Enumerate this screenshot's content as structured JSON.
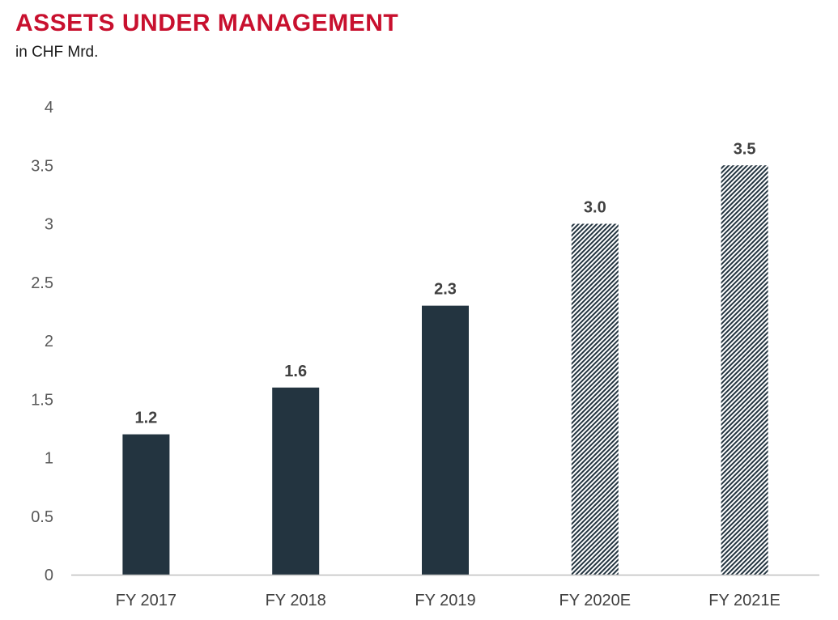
{
  "header": {
    "title": "ASSETS UNDER MANAGEMENT",
    "subtitle": "in CHF Mrd."
  },
  "colors": {
    "title": "#c8102e",
    "bar": "#233440",
    "axis": "#bfbfbf",
    "label": "#404040",
    "tick": "#595959"
  },
  "chart_data": {
    "type": "bar",
    "title": "ASSETS UNDER MANAGEMENT",
    "subtitle": "in CHF Mrd.",
    "xlabel": "",
    "ylabel": "",
    "categories": [
      "FY 2017",
      "FY 2018",
      "FY 2019",
      "FY 2020E",
      "FY 2021E"
    ],
    "values": [
      1.2,
      1.6,
      2.3,
      3.0,
      3.5
    ],
    "data_labels": [
      "1.2",
      "1.6",
      "2.3",
      "3.0",
      "3.5"
    ],
    "bar_styles": [
      "solid",
      "solid",
      "solid",
      "hatched",
      "hatched"
    ],
    "ylim": [
      0,
      4
    ],
    "yticks": [
      0,
      0.5,
      1,
      1.5,
      2,
      2.5,
      3,
      3.5,
      4
    ],
    "ytick_labels": [
      "0",
      "0.5",
      "1",
      "1.5",
      "2",
      "2.5",
      "3",
      "3.5",
      "4"
    ],
    "grid": false,
    "legend": "none"
  }
}
